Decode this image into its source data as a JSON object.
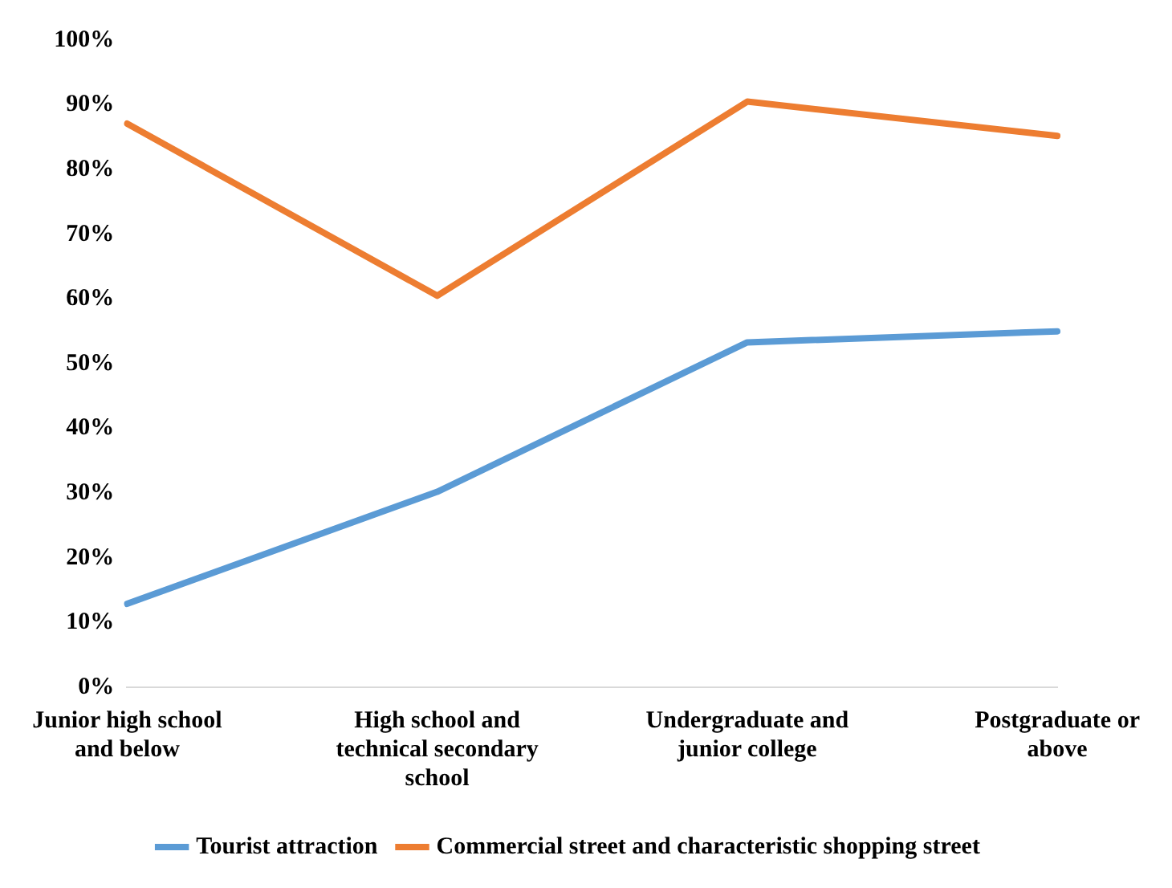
{
  "chart_data": {
    "type": "line",
    "categories": [
      "Junior high school and below",
      "High school and technical secondary school",
      "Undergraduate and junior college",
      "Postgraduate or above"
    ],
    "series": [
      {
        "name": "Tourist attraction",
        "color": "#5b9bd5",
        "values": [
          12.9,
          30.2,
          53.3,
          55
        ]
      },
      {
        "name": "Commercial street and characteristic shopping street",
        "color": "#ed7d31",
        "values": [
          87.1,
          60.5,
          90.5,
          85.2
        ]
      }
    ],
    "ylim": [
      0,
      100
    ],
    "yticks": [
      {
        "value": 0,
        "label": "0%"
      },
      {
        "value": 10,
        "label": "10%"
      },
      {
        "value": 20,
        "label": "20%"
      },
      {
        "value": 30,
        "label": "30%"
      },
      {
        "value": 40,
        "label": "40%"
      },
      {
        "value": 50,
        "label": "50%"
      },
      {
        "value": 60,
        "label": "60%"
      },
      {
        "value": 70,
        "label": "70%"
      },
      {
        "value": 80,
        "label": "80%"
      },
      {
        "value": 90,
        "label": "90%"
      },
      {
        "value": 100,
        "label": "100%"
      }
    ],
    "grid": false,
    "legend": "bottom",
    "marker": "none",
    "line_style": "solid"
  }
}
